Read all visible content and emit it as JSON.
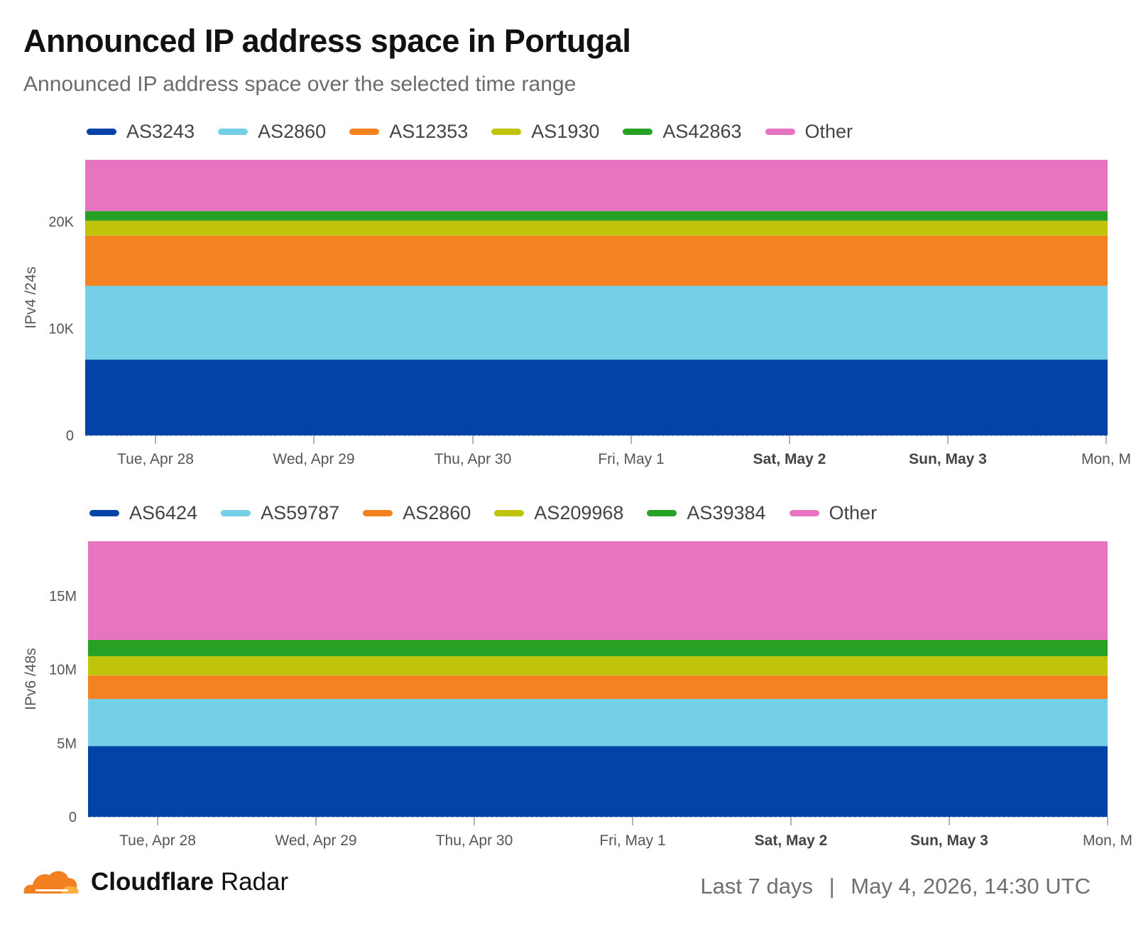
{
  "header": {
    "title": "Announced IP address space in Portugal",
    "subtitle": "Announced IP address space over the selected time range"
  },
  "footer": {
    "brand_bold": "Cloudflare",
    "brand_light": "Radar",
    "range": "Last 7 days",
    "separator": "|",
    "timestamp": "May 4, 2026, 14:30 UTC",
    "logo_icon": "cloudflare-cloud-icon",
    "logo_colors": [
      "#f38020",
      "#faae40"
    ]
  },
  "chart_data": [
    {
      "type": "area",
      "stacked": true,
      "ylabel": "IPv4 /24s",
      "xlabel": "",
      "ylim": [
        0,
        25800
      ],
      "yticks": [
        0,
        10000,
        20000
      ],
      "ytick_labels": [
        "0",
        "10K",
        "20K"
      ],
      "x_ticks": [
        {
          "label": "Tue, Apr 28",
          "bold": false
        },
        {
          "label": "Wed, Apr 29",
          "bold": false
        },
        {
          "label": "Thu, Apr 30",
          "bold": false
        },
        {
          "label": "Fri, May 1",
          "bold": false
        },
        {
          "label": "Sat, May 2",
          "bold": true
        },
        {
          "label": "Sun, May 3",
          "bold": true
        },
        {
          "label": "Mon, M",
          "bold": false
        }
      ],
      "grid": false,
      "legend_position": "top-left",
      "series": [
        {
          "name": "AS3243",
          "color": "#0143a6",
          "value": 7100
        },
        {
          "name": "AS2860",
          "color": "#75cfe6",
          "value": 6900
        },
        {
          "name": "AS12353",
          "color": "#f58220",
          "value": 4700
        },
        {
          "name": "AS1930",
          "color": "#bfc30a",
          "value": 1400
        },
        {
          "name": "AS42863",
          "color": "#27a124",
          "value": 900
        },
        {
          "name": "Other",
          "color": "#e674c0",
          "value": 4800
        }
      ]
    },
    {
      "type": "area",
      "stacked": true,
      "ylabel": "IPv6 /48s",
      "xlabel": "",
      "ylim": [
        0,
        18700000
      ],
      "yticks": [
        0,
        5000000,
        10000000,
        15000000
      ],
      "ytick_labels": [
        "0",
        "5M",
        "10M",
        "15M"
      ],
      "x_ticks": [
        {
          "label": "Tue, Apr 28",
          "bold": false
        },
        {
          "label": "Wed, Apr 29",
          "bold": false
        },
        {
          "label": "Thu, Apr 30",
          "bold": false
        },
        {
          "label": "Fri, May 1",
          "bold": false
        },
        {
          "label": "Sat, May 2",
          "bold": true
        },
        {
          "label": "Sun, May 3",
          "bold": true
        },
        {
          "label": "Mon, M",
          "bold": false
        }
      ],
      "grid": false,
      "legend_position": "top-left",
      "series": [
        {
          "name": "AS6424",
          "color": "#0143a6",
          "value": 4800000
        },
        {
          "name": "AS59787",
          "color": "#75cfe6",
          "value": 3200000
        },
        {
          "name": "AS2860",
          "color": "#f58220",
          "value": 1600000
        },
        {
          "name": "AS209968",
          "color": "#bfc30a",
          "value": 1300000
        },
        {
          "name": "AS39384",
          "color": "#27a124",
          "value": 1100000
        },
        {
          "name": "Other",
          "color": "#e674c0",
          "value": 6700000
        }
      ]
    }
  ]
}
